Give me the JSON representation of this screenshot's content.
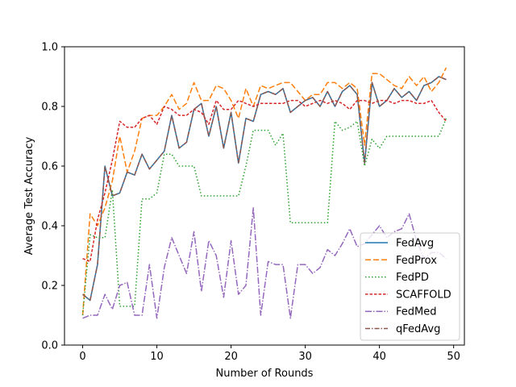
{
  "chart_data": {
    "type": "line",
    "xlabel": "Number of Rounds",
    "ylabel": "Average Test Accuracy",
    "xlim": [
      -2.45,
      51.45
    ],
    "ylim": [
      0.0,
      1.0
    ],
    "xticks": [
      0,
      10,
      20,
      30,
      40,
      50
    ],
    "yticks": [
      0.0,
      0.2,
      0.4,
      0.6,
      0.8,
      1.0
    ],
    "xtick_labels": [
      "0",
      "10",
      "20",
      "30",
      "40",
      "50"
    ],
    "ytick_labels": [
      "0.0",
      "0.2",
      "0.4",
      "0.6",
      "0.8",
      "1.0"
    ],
    "grid": false,
    "legend_position": "lower-right",
    "x": [
      0,
      1,
      2,
      3,
      4,
      5,
      6,
      7,
      8,
      9,
      10,
      11,
      12,
      13,
      14,
      15,
      16,
      17,
      18,
      19,
      20,
      21,
      22,
      23,
      24,
      25,
      26,
      27,
      28,
      29,
      30,
      31,
      32,
      33,
      34,
      35,
      36,
      37,
      38,
      39,
      40,
      41,
      42,
      43,
      44,
      45,
      46,
      47,
      48,
      49
    ],
    "series": [
      {
        "name": "FedAvg",
        "color": "#1f77b4",
        "dash": "solid",
        "values": [
          0.17,
          0.15,
          0.27,
          0.6,
          0.5,
          0.51,
          0.58,
          0.57,
          0.64,
          0.59,
          0.62,
          0.65,
          0.77,
          0.66,
          0.68,
          0.79,
          0.81,
          0.7,
          0.8,
          0.66,
          0.78,
          0.61,
          0.76,
          0.75,
          0.84,
          0.85,
          0.84,
          0.86,
          0.78,
          0.8,
          0.82,
          0.83,
          0.8,
          0.85,
          0.8,
          0.85,
          0.87,
          0.84,
          0.61,
          0.88,
          0.8,
          0.82,
          0.86,
          0.83,
          0.85,
          0.82,
          0.87,
          0.88,
          0.9,
          0.89
        ]
      },
      {
        "name": "FedProx",
        "color": "#ff7f0e",
        "dash": "7,3",
        "values": [
          0.1,
          0.44,
          0.4,
          0.46,
          0.55,
          0.7,
          0.58,
          0.65,
          0.76,
          0.77,
          0.77,
          0.8,
          0.84,
          0.79,
          0.81,
          0.88,
          0.82,
          0.82,
          0.87,
          0.86,
          0.82,
          0.76,
          0.86,
          0.8,
          0.87,
          0.86,
          0.87,
          0.88,
          0.88,
          0.85,
          0.82,
          0.84,
          0.84,
          0.88,
          0.88,
          0.86,
          0.88,
          0.86,
          0.67,
          0.91,
          0.91,
          0.89,
          0.87,
          0.86,
          0.9,
          0.87,
          0.9,
          0.85,
          0.88,
          0.93
        ]
      },
      {
        "name": "FedPD",
        "color": "#2ca02c",
        "dash": "1.5,2.5",
        "values": [
          0.1,
          0.37,
          0.36,
          0.36,
          0.52,
          0.13,
          0.13,
          0.13,
          0.49,
          0.49,
          0.51,
          0.64,
          0.64,
          0.6,
          0.6,
          0.6,
          0.5,
          0.5,
          0.5,
          0.5,
          0.5,
          0.5,
          0.6,
          0.72,
          0.72,
          0.72,
          0.67,
          0.71,
          0.41,
          0.41,
          0.41,
          0.41,
          0.41,
          0.41,
          0.75,
          0.72,
          0.73,
          0.75,
          0.6,
          0.69,
          0.66,
          0.7,
          0.7,
          0.7,
          0.7,
          0.7,
          0.7,
          0.7,
          0.7,
          0.76
        ]
      },
      {
        "name": "SCAFFOLD",
        "color": "#d62728",
        "dash": "3.5,2",
        "values": [
          0.29,
          0.28,
          0.42,
          0.51,
          0.62,
          0.75,
          0.73,
          0.73,
          0.76,
          0.77,
          0.74,
          0.8,
          0.79,
          0.77,
          0.77,
          0.79,
          0.78,
          0.74,
          0.82,
          0.79,
          0.79,
          0.82,
          0.81,
          0.8,
          0.81,
          0.81,
          0.81,
          0.81,
          0.82,
          0.82,
          0.8,
          0.81,
          0.82,
          0.81,
          0.82,
          0.81,
          0.79,
          0.82,
          0.82,
          0.81,
          0.82,
          0.82,
          0.81,
          0.82,
          0.82,
          0.81,
          0.81,
          0.82,
          0.78,
          0.75
        ]
      },
      {
        "name": "FedMed",
        "color": "#9467bd",
        "dash": "8,2,1.5,2",
        "values": [
          0.09,
          0.1,
          0.1,
          0.17,
          0.12,
          0.2,
          0.21,
          0.1,
          0.1,
          0.27,
          0.09,
          0.26,
          0.36,
          0.3,
          0.24,
          0.38,
          0.18,
          0.35,
          0.3,
          0.16,
          0.35,
          0.17,
          0.2,
          0.46,
          0.1,
          0.28,
          0.27,
          0.27,
          0.09,
          0.27,
          0.27,
          0.24,
          0.26,
          0.32,
          0.3,
          0.34,
          0.39,
          0.33,
          0.34,
          0.37,
          0.4,
          0.36,
          0.38,
          0.39,
          0.44,
          0.35,
          0.29,
          0.31,
          0.31,
          0.29
        ]
      },
      {
        "name": "qFedAvg",
        "color": "#8c564b",
        "dash": "6,2,1.5,2",
        "values": [
          0.17,
          0.15,
          0.27,
          0.6,
          0.5,
          0.51,
          0.58,
          0.57,
          0.64,
          0.59,
          0.62,
          0.65,
          0.77,
          0.66,
          0.68,
          0.79,
          0.81,
          0.7,
          0.8,
          0.66,
          0.78,
          0.61,
          0.76,
          0.75,
          0.84,
          0.85,
          0.84,
          0.86,
          0.78,
          0.8,
          0.82,
          0.83,
          0.8,
          0.85,
          0.8,
          0.85,
          0.87,
          0.84,
          0.61,
          0.88,
          0.8,
          0.82,
          0.86,
          0.83,
          0.85,
          0.82,
          0.87,
          0.88,
          0.9,
          0.89
        ]
      }
    ]
  }
}
